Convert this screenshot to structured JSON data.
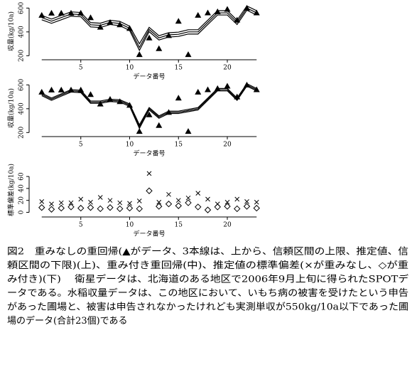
{
  "chart_data": [
    {
      "type": "line",
      "xlabel": "データ番号",
      "ylabel": "収量(kg/10a)",
      "x": [
        1,
        2,
        3,
        4,
        5,
        6,
        7,
        8,
        9,
        10,
        11,
        12,
        13,
        14,
        15,
        16,
        17,
        18,
        19,
        20,
        21,
        22,
        23
      ],
      "xlim": [
        0,
        24
      ],
      "ylim": [
        190,
        620
      ],
      "xticks": [
        5,
        10,
        15,
        20
      ],
      "yticks": [
        200,
        400,
        600
      ],
      "series": [
        {
          "style": "line",
          "color": "#000000",
          "values": [
            538,
            508,
            538,
            568,
            563,
            478,
            473,
            498,
            488,
            448,
            300,
            438,
            368,
            393,
            398,
            418,
            418,
            498,
            578,
            578,
            498,
            618,
            578
          ]
        },
        {
          "style": "line",
          "color": "#000000",
          "values": [
            520,
            490,
            520,
            550,
            545,
            460,
            455,
            480,
            470,
            430,
            270,
            420,
            350,
            375,
            380,
            400,
            400,
            480,
            560,
            560,
            480,
            600,
            560
          ]
        },
        {
          "style": "line",
          "color": "#000000",
          "values": [
            502,
            472,
            502,
            532,
            527,
            442,
            437,
            462,
            452,
            412,
            245,
            402,
            332,
            357,
            362,
            382,
            382,
            462,
            542,
            542,
            462,
            582,
            542
          ]
        },
        {
          "style": "triangle",
          "color": "#000000",
          "values": [
            540,
            558,
            558,
            558,
            558,
            520,
            440,
            480,
            460,
            430,
            210,
            350,
            260,
            370,
            490,
            210,
            540,
            560,
            570,
            590,
            500,
            600,
            560
          ]
        }
      ]
    },
    {
      "type": "line",
      "xlabel": "データ番号",
      "ylabel": "収量(kg/10a)",
      "x": [
        1,
        2,
        3,
        4,
        5,
        6,
        7,
        8,
        9,
        10,
        11,
        12,
        13,
        14,
        15,
        16,
        17,
        18,
        19,
        20,
        21,
        22,
        23
      ],
      "xlim": [
        0,
        24
      ],
      "ylim": [
        190,
        620
      ],
      "xticks": [
        5,
        10,
        15,
        20
      ],
      "yticks": [
        200,
        400,
        600
      ],
      "series": [
        {
          "style": "line",
          "color": "#000000",
          "values": [
            530,
            490,
            525,
            560,
            555,
            465,
            465,
            480,
            475,
            440,
            265,
            410,
            340,
            380,
            380,
            395,
            410,
            490,
            570,
            570,
            490,
            610,
            570
          ]
        },
        {
          "style": "line",
          "color": "#000000",
          "values": [
            520,
            480,
            515,
            550,
            545,
            455,
            455,
            470,
            465,
            430,
            250,
            400,
            330,
            370,
            370,
            385,
            400,
            480,
            560,
            560,
            480,
            600,
            560
          ]
        },
        {
          "style": "line",
          "color": "#000000",
          "values": [
            510,
            470,
            505,
            540,
            535,
            445,
            445,
            460,
            455,
            420,
            235,
            390,
            320,
            360,
            360,
            375,
            390,
            470,
            550,
            550,
            470,
            590,
            550
          ]
        },
        {
          "style": "triangle",
          "color": "#000000",
          "values": [
            540,
            558,
            558,
            558,
            558,
            520,
            440,
            480,
            460,
            430,
            210,
            350,
            260,
            370,
            490,
            210,
            540,
            560,
            570,
            590,
            500,
            600,
            560
          ]
        }
      ]
    },
    {
      "type": "scatter",
      "xlabel": "データ番号",
      "ylabel": "標準偏差(kg/10a)",
      "x": [
        1,
        2,
        3,
        4,
        5,
        6,
        7,
        8,
        9,
        10,
        11,
        12,
        13,
        14,
        15,
        16,
        17,
        18,
        19,
        20,
        21,
        22,
        23
      ],
      "xlim": [
        0,
        24
      ],
      "ylim": [
        -3,
        78
      ],
      "xticks": [
        5,
        10,
        15,
        20
      ],
      "yticks": [
        0,
        20,
        40,
        60
      ],
      "series": [
        {
          "style": "cross",
          "color": "#000000",
          "values": [
            18,
            14,
            16,
            16,
            22,
            17,
            25,
            20,
            16,
            15,
            19,
            65,
            17,
            30,
            20,
            24,
            32,
            22,
            14,
            17,
            22,
            18,
            17
          ]
        },
        {
          "style": "diamond",
          "color": "#000000",
          "values": [
            8,
            5,
            7,
            9,
            7,
            8,
            6,
            8,
            6,
            7,
            6,
            36,
            10,
            14,
            11,
            16,
            9,
            4,
            9,
            10,
            6,
            10,
            7
          ]
        }
      ]
    }
  ],
  "caption": {
    "lines": [
      "図2　重みなしの重回帰(▲がデータ、3本線は、上から、信頼区間の上限、推定値、信",
      "頼区間の下限)(上)、重み付き重回帰(中)、推定値の標準偏差(×が重みなし、◇が重",
      "み付き)(下)　 衛星データは、北海道のある地区で2006年9月上旬に得られたSPOTデ",
      "ータである。水稲収量データは、この地区において、いもち病の被害を受けたという申告",
      "があった圃場と、被害は申告されなかったけれども実測単収が550kg/10a以下であった圃",
      "場のデータ(合計23個)である"
    ]
  }
}
